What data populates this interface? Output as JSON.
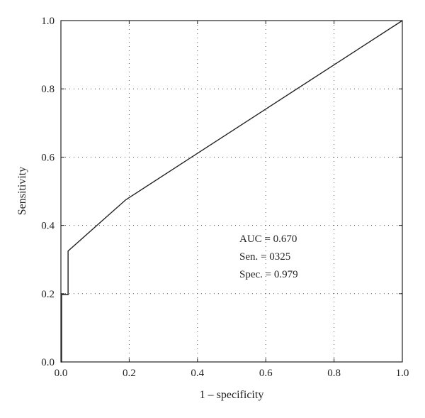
{
  "chart_data": {
    "type": "line",
    "xlabel": "1 – specificity",
    "ylabel": "Sensitivity",
    "xlim": [
      0,
      1
    ],
    "ylim": [
      0,
      1
    ],
    "grid": true,
    "x_ticks": [
      "0.0",
      "0.2",
      "0.4",
      "0.6",
      "0.8",
      "1.0"
    ],
    "y_ticks": [
      "0.0",
      "0.2",
      "0.4",
      "0.6",
      "0.8",
      "1.0"
    ],
    "series": [
      {
        "x": [
          0.0,
          0.002,
          0.002,
          0.021,
          0.021,
          0.19,
          1.0
        ],
        "y": [
          0.0,
          0.0,
          0.197,
          0.197,
          0.325,
          0.475,
          1.0
        ]
      }
    ],
    "annotations": [
      "AUC = 0.670",
      "Sen. = 0325",
      "Spec. = 0.979"
    ]
  }
}
